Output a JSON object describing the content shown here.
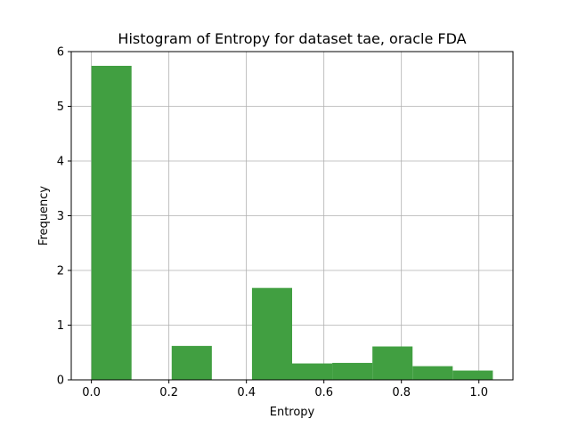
{
  "chart_data": {
    "type": "bar",
    "title": "Histogram of Entropy for dataset tae, oracle FDA",
    "xlabel": "Entropy",
    "ylabel": "Frequency",
    "xlim": [
      -0.052,
      1.088
    ],
    "ylim": [
      0,
      6
    ],
    "xticks": [
      0.0,
      0.2,
      0.4,
      0.6,
      0.8,
      1.0
    ],
    "xtick_labels": [
      "0.0",
      "0.2",
      "0.4",
      "0.6",
      "0.8",
      "1.0"
    ],
    "yticks": [
      0,
      1,
      2,
      3,
      4,
      5,
      6
    ],
    "ytick_labels": [
      "0",
      "1",
      "2",
      "3",
      "4",
      "5",
      "6"
    ],
    "grid": true,
    "bar_color": "#419f41",
    "bins": [
      {
        "x0": 0.0,
        "x1": 0.1036,
        "value": 5.74
      },
      {
        "x0": 0.1036,
        "x1": 0.2072,
        "value": 0
      },
      {
        "x0": 0.2072,
        "x1": 0.3108,
        "value": 0.62
      },
      {
        "x0": 0.3108,
        "x1": 0.4144,
        "value": 0
      },
      {
        "x0": 0.4144,
        "x1": 0.518,
        "value": 1.68
      },
      {
        "x0": 0.518,
        "x1": 0.6216,
        "value": 0.3
      },
      {
        "x0": 0.6216,
        "x1": 0.7252,
        "value": 0.31
      },
      {
        "x0": 0.7252,
        "x1": 0.8288,
        "value": 0.61
      },
      {
        "x0": 0.8288,
        "x1": 0.9324,
        "value": 0.25
      },
      {
        "x0": 0.9324,
        "x1": 1.036,
        "value": 0.17
      }
    ]
  }
}
